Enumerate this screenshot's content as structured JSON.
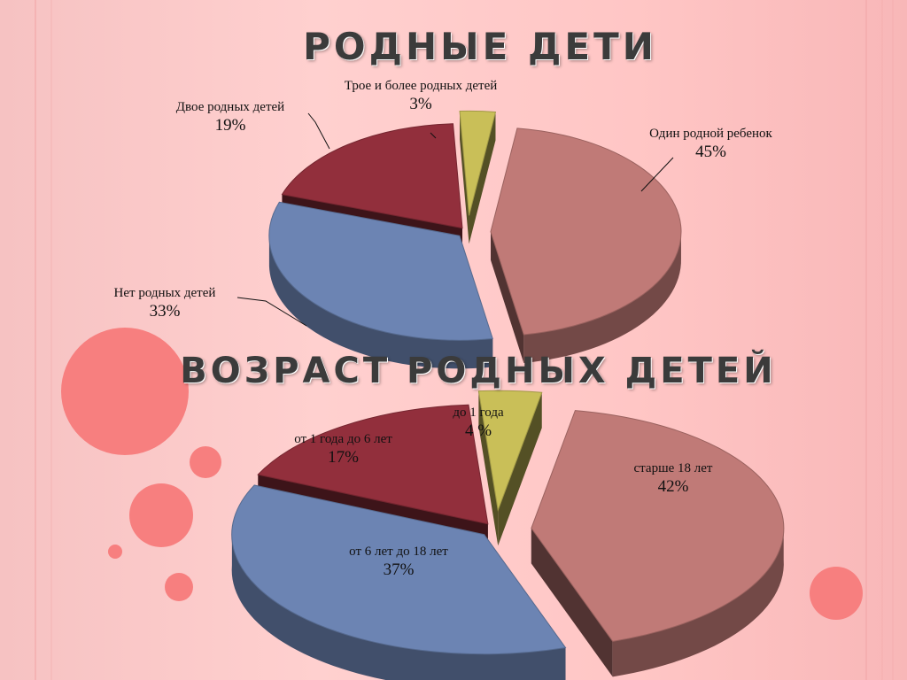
{
  "colors": {
    "slice_pink": "#c07a77",
    "slice_red": "#922f3c",
    "slice_blue": "#6c84b3",
    "slice_yellow": "#c9bf58"
  },
  "chart_data": [
    {
      "type": "pie",
      "title": "РОДНЫЕ ДЕТИ",
      "slices": [
        {
          "label": "Один родной ребенок",
          "value": 45,
          "pct_label": "45%"
        },
        {
          "label": "Нет родных детей",
          "value": 33,
          "pct_label": "33%"
        },
        {
          "label": "Двое родных детей",
          "value": 19,
          "pct_label": "19%"
        },
        {
          "label": "Трое и более родных детей",
          "value": 3,
          "pct_label": "3%"
        }
      ]
    },
    {
      "type": "pie",
      "title": "ВОЗРАСТ РОДНЫХ ДЕТЕЙ",
      "slices": [
        {
          "label": "старше 18 лет",
          "value": 42,
          "pct_label": "42%"
        },
        {
          "label": "от 6 лет до 18 лет",
          "value": 37,
          "pct_label": "37%"
        },
        {
          "label": "от 1 года до 6 лет",
          "value": 17,
          "pct_label": "17%"
        },
        {
          "label": "до 1 года",
          "value": 4,
          "pct_label": "4  %"
        }
      ]
    }
  ]
}
